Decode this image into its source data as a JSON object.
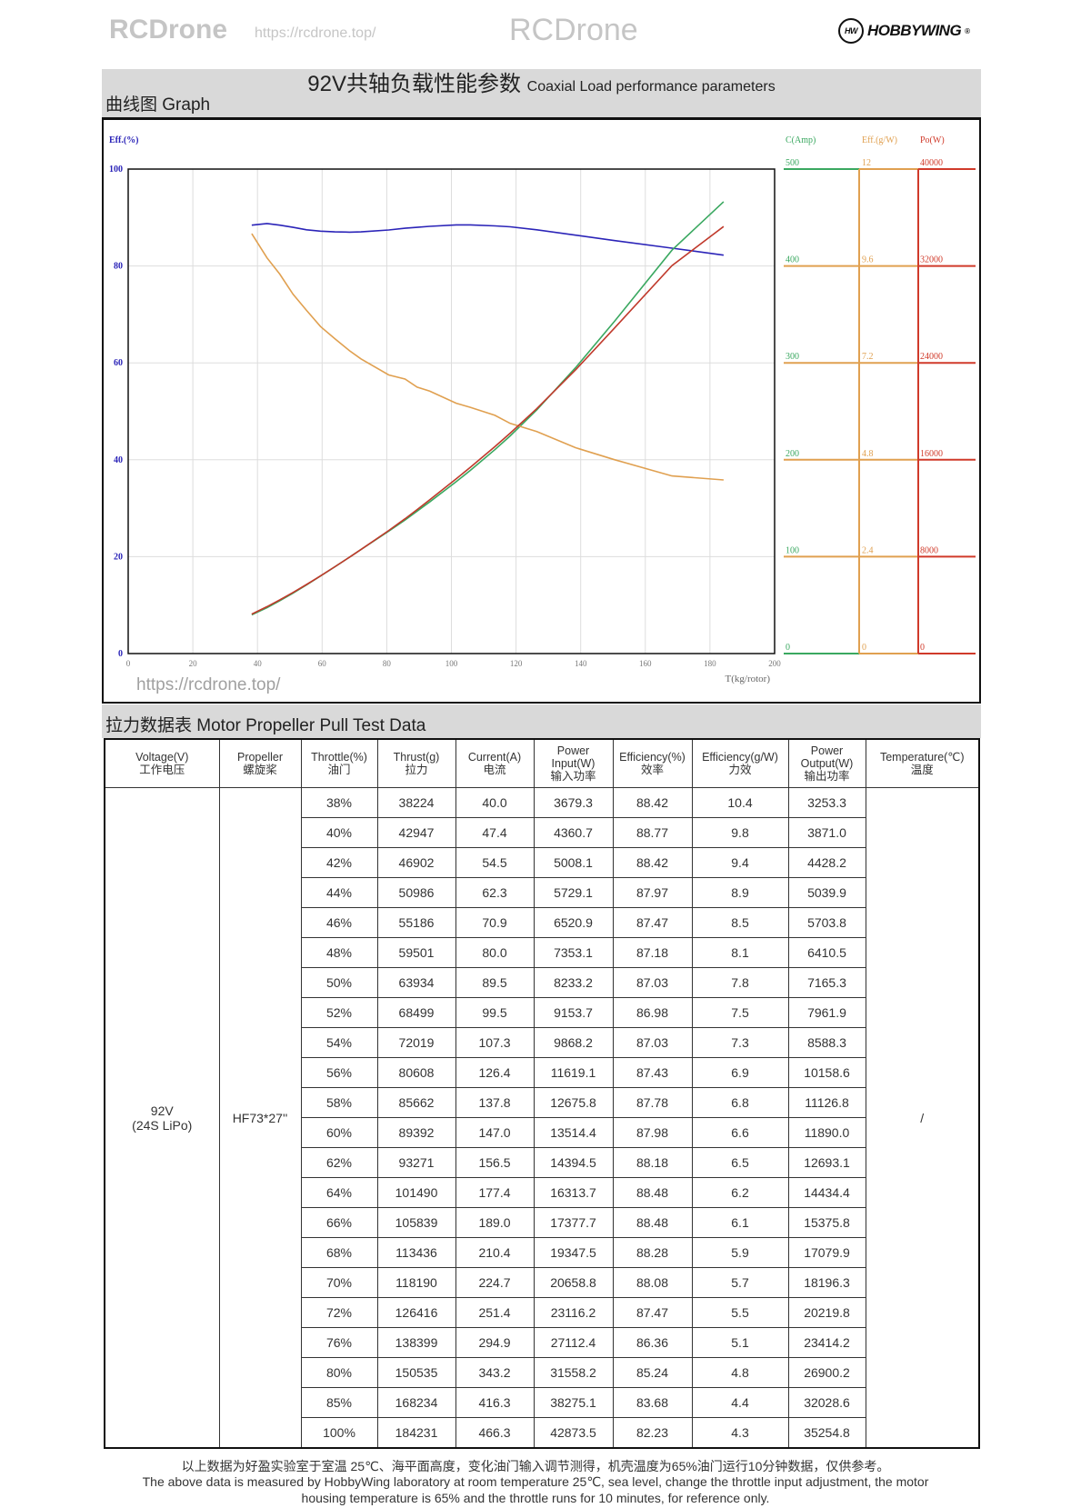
{
  "brand": {
    "name": "HOBBYWING",
    "mark": "HW"
  },
  "header": {
    "title_cn": "92V共轴负载性能参数",
    "title_en": "Coaxial Load performance parameters",
    "graph_label": "曲线图 Graph"
  },
  "table_section": {
    "label": "拉力数据表 Motor Propeller Pull Test Data"
  },
  "chart_data": {
    "type": "line",
    "xlabel": "T(kg/rotor)",
    "xlim": [
      0,
      200
    ],
    "x_ticks": [
      "0",
      "20",
      "40",
      "60",
      "80",
      "100",
      "120",
      "140",
      "160",
      "180",
      "200"
    ],
    "grid": true,
    "axes": [
      {
        "label": "Eff.(%)",
        "ticks": [
          "0",
          "20",
          "40",
          "60",
          "80",
          "100"
        ],
        "range": [
          0,
          100
        ],
        "color": "#2b24b8"
      },
      {
        "label": "C(Amp)",
        "ticks": [
          "0",
          "100",
          "200",
          "300",
          "400",
          "500"
        ],
        "range": [
          0,
          500
        ],
        "color": "#3aa860"
      },
      {
        "label": "Eff.(g/W)",
        "ticks": [
          "0",
          "2.4",
          "4.8",
          "7.2",
          "9.6",
          "12"
        ],
        "range": [
          0,
          12
        ],
        "color": "#e0a050"
      },
      {
        "label": "Po(W)",
        "ticks": [
          "0",
          "8000",
          "16000",
          "24000",
          "32000",
          "40000"
        ],
        "range": [
          0,
          40000
        ],
        "color": "#d03a2a"
      }
    ],
    "series_colors": {
      "efficiency_pct": "#2b24b8",
      "current": "#3aa860",
      "efficiency_gw": "#e0a050",
      "power_output": "#c0392b"
    }
  },
  "table": {
    "headers": [
      [
        "Voltage(V)",
        "工作电压"
      ],
      [
        "Propeller",
        "螺旋桨"
      ],
      [
        "Throttle(%)",
        "油门"
      ],
      [
        "Thrust(g)",
        "拉力"
      ],
      [
        "Current(A)",
        "电流"
      ],
      [
        "Power Input(W)",
        "输入功率"
      ],
      [
        "Efficiency(%)",
        "效率"
      ],
      [
        "Efficiency(g/W)",
        "力效"
      ],
      [
        "Power Output(W)",
        "输出功率"
      ],
      [
        "Temperature(℃)",
        "温度"
      ]
    ],
    "voltage": [
      "92V",
      "(24S LiPo)"
    ],
    "propeller": "HF73*27''",
    "temperature": "/",
    "rows": [
      [
        "38%",
        "38224",
        "40.0",
        "3679.3",
        "88.42",
        "10.4",
        "3253.3"
      ],
      [
        "40%",
        "42947",
        "47.4",
        "4360.7",
        "88.77",
        "9.8",
        "3871.0"
      ],
      [
        "42%",
        "46902",
        "54.5",
        "5008.1",
        "88.42",
        "9.4",
        "4428.2"
      ],
      [
        "44%",
        "50986",
        "62.3",
        "5729.1",
        "87.97",
        "8.9",
        "5039.9"
      ],
      [
        "46%",
        "55186",
        "70.9",
        "6520.9",
        "87.47",
        "8.5",
        "5703.8"
      ],
      [
        "48%",
        "59501",
        "80.0",
        "7353.1",
        "87.18",
        "8.1",
        "6410.5"
      ],
      [
        "50%",
        "63934",
        "89.5",
        "8233.2",
        "87.03",
        "7.8",
        "7165.3"
      ],
      [
        "52%",
        "68499",
        "99.5",
        "9153.7",
        "86.98",
        "7.5",
        "7961.9"
      ],
      [
        "54%",
        "72019",
        "107.3",
        "9868.2",
        "87.03",
        "7.3",
        "8588.3"
      ],
      [
        "56%",
        "80608",
        "126.4",
        "11619.1",
        "87.43",
        "6.9",
        "10158.6"
      ],
      [
        "58%",
        "85662",
        "137.8",
        "12675.8",
        "87.78",
        "6.8",
        "11126.8"
      ],
      [
        "60%",
        "89392",
        "147.0",
        "13514.4",
        "87.98",
        "6.6",
        "11890.0"
      ],
      [
        "62%",
        "93271",
        "156.5",
        "14394.5",
        "88.18",
        "6.5",
        "12693.1"
      ],
      [
        "64%",
        "101490",
        "177.4",
        "16313.7",
        "88.48",
        "6.2",
        "14434.4"
      ],
      [
        "66%",
        "105839",
        "189.0",
        "17377.7",
        "88.48",
        "6.1",
        "15375.8"
      ],
      [
        "68%",
        "113436",
        "210.4",
        "19347.5",
        "88.28",
        "5.9",
        "17079.9"
      ],
      [
        "70%",
        "118190",
        "224.7",
        "20658.8",
        "88.08",
        "5.7",
        "18196.3"
      ],
      [
        "72%",
        "126416",
        "251.4",
        "23116.2",
        "87.47",
        "5.5",
        "20219.8"
      ],
      [
        "76%",
        "138399",
        "294.9",
        "27112.4",
        "86.36",
        "5.1",
        "23414.2"
      ],
      [
        "80%",
        "150535",
        "343.2",
        "31558.2",
        "85.24",
        "4.8",
        "26900.2"
      ],
      [
        "85%",
        "168234",
        "416.3",
        "38275.1",
        "83.68",
        "4.4",
        "32028.6"
      ],
      [
        "100%",
        "184231",
        "466.3",
        "42873.5",
        "82.23",
        "4.3",
        "35254.8"
      ]
    ]
  },
  "footer": {
    "cn": "以上数据为好盈实验室于室温 25℃、海平面高度，变化油门输入调节测得，机壳温度为65%油门运行10分钟数据，仅供参考。",
    "en1": "The above data is measured by HobbyWing laboratory at room temperature 25℃, sea level, change the throttle input adjustment, the motor",
    "en2": "housing temperature is 65% and the throttle runs for 10 minutes, for reference only."
  },
  "watermarks": {
    "brand": "RCDrone",
    "url": "https://rcdrone.top/"
  }
}
